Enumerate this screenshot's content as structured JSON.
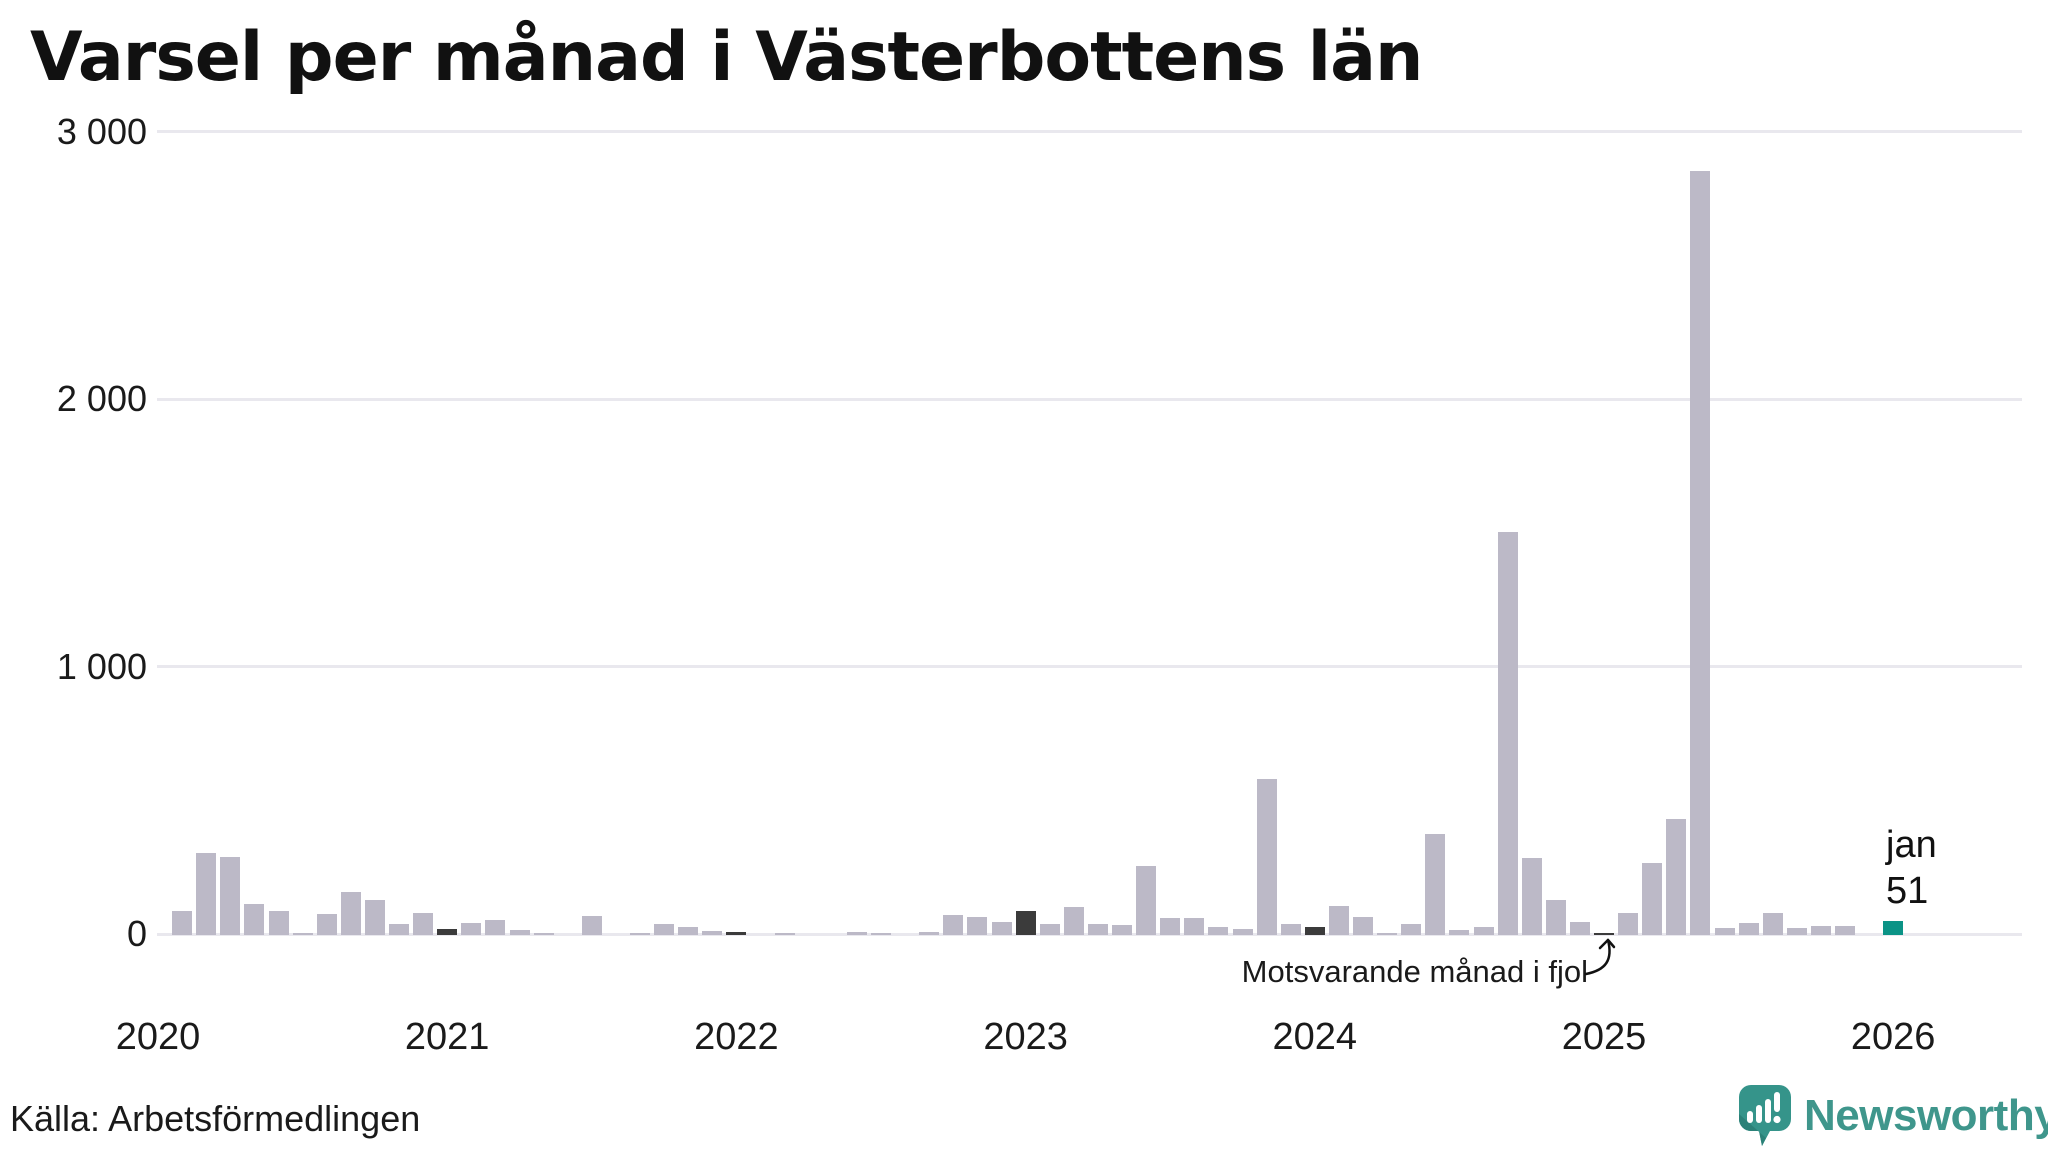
{
  "title": "Varsel per månad i Västerbottens län",
  "source": "Källa: Arbetsförmedlingen",
  "brand": {
    "name": "Newsworthy"
  },
  "annotation": {
    "text": "Motsvarande månad i fjol"
  },
  "current_point_label": {
    "month": "jan",
    "value": "51"
  },
  "y_axis": {
    "ticks": [
      {
        "value": 0,
        "label": "0"
      },
      {
        "value": 1000,
        "label": "1 000"
      },
      {
        "value": 2000,
        "label": "2 000"
      },
      {
        "value": 3000,
        "label": "3 000"
      }
    ]
  },
  "x_axis": {
    "years": [
      "2020",
      "2021",
      "2022",
      "2023",
      "2024",
      "2025",
      "2026"
    ]
  },
  "colors": {
    "bar": "#bcb9c7",
    "highlight": "#3b3b3b",
    "current": "#0b9386",
    "grid": "#e9e8ee",
    "text": "#1a1a1a",
    "brand_teal": "#3f968c",
    "brand_bubble": "#35948a"
  },
  "chart_data": {
    "type": "bar",
    "title": "Varsel per månad i Västerbottens län",
    "xlabel": "",
    "ylabel": "",
    "ylim": [
      0,
      3000
    ],
    "grid": "horizontal",
    "legend_position": "none",
    "highlighted_months": [
      "2021-01",
      "2022-01",
      "2023-01",
      "2024-01",
      "2025-01"
    ],
    "current_month": "2026-01",
    "points": [
      {
        "month": "2020-01",
        "value": 0
      },
      {
        "month": "2020-02",
        "value": 90
      },
      {
        "month": "2020-03",
        "value": 307
      },
      {
        "month": "2020-04",
        "value": 291
      },
      {
        "month": "2020-05",
        "value": 117
      },
      {
        "month": "2020-06",
        "value": 90
      },
      {
        "month": "2020-07",
        "value": 5
      },
      {
        "month": "2020-08",
        "value": 77
      },
      {
        "month": "2020-09",
        "value": 160
      },
      {
        "month": "2020-10",
        "value": 132
      },
      {
        "month": "2020-11",
        "value": 40
      },
      {
        "month": "2020-12",
        "value": 82
      },
      {
        "month": "2021-01",
        "value": 24
      },
      {
        "month": "2021-02",
        "value": 46
      },
      {
        "month": "2021-03",
        "value": 57
      },
      {
        "month": "2021-04",
        "value": 20
      },
      {
        "month": "2021-05",
        "value": 7
      },
      {
        "month": "2021-06",
        "value": 0
      },
      {
        "month": "2021-07",
        "value": 70
      },
      {
        "month": "2021-08",
        "value": 0
      },
      {
        "month": "2021-09",
        "value": 6
      },
      {
        "month": "2021-10",
        "value": 42
      },
      {
        "month": "2021-11",
        "value": 30
      },
      {
        "month": "2021-12",
        "value": 15
      },
      {
        "month": "2022-01",
        "value": 13
      },
      {
        "month": "2022-02",
        "value": 0
      },
      {
        "month": "2022-03",
        "value": 8
      },
      {
        "month": "2022-04",
        "value": 0
      },
      {
        "month": "2022-05",
        "value": 0
      },
      {
        "month": "2022-06",
        "value": 10
      },
      {
        "month": "2022-07",
        "value": 5
      },
      {
        "month": "2022-08",
        "value": 0
      },
      {
        "month": "2022-09",
        "value": 10
      },
      {
        "month": "2022-10",
        "value": 76
      },
      {
        "month": "2022-11",
        "value": 67
      },
      {
        "month": "2022-12",
        "value": 49
      },
      {
        "month": "2023-01",
        "value": 90
      },
      {
        "month": "2023-02",
        "value": 42
      },
      {
        "month": "2023-03",
        "value": 105
      },
      {
        "month": "2023-04",
        "value": 40
      },
      {
        "month": "2023-05",
        "value": 37
      },
      {
        "month": "2023-06",
        "value": 258
      },
      {
        "month": "2023-07",
        "value": 64
      },
      {
        "month": "2023-08",
        "value": 64
      },
      {
        "month": "2023-09",
        "value": 31
      },
      {
        "month": "2023-10",
        "value": 24
      },
      {
        "month": "2023-11",
        "value": 582
      },
      {
        "month": "2023-12",
        "value": 42
      },
      {
        "month": "2024-01",
        "value": 30
      },
      {
        "month": "2024-02",
        "value": 108
      },
      {
        "month": "2024-03",
        "value": 67
      },
      {
        "month": "2024-04",
        "value": 9
      },
      {
        "month": "2024-05",
        "value": 40
      },
      {
        "month": "2024-06",
        "value": 377
      },
      {
        "month": "2024-07",
        "value": 19
      },
      {
        "month": "2024-08",
        "value": 30
      },
      {
        "month": "2024-09",
        "value": 1508
      },
      {
        "month": "2024-10",
        "value": 287
      },
      {
        "month": "2024-11",
        "value": 131
      },
      {
        "month": "2024-12",
        "value": 49
      },
      {
        "month": "2025-01",
        "value": 5
      },
      {
        "month": "2025-02",
        "value": 82
      },
      {
        "month": "2025-03",
        "value": 269
      },
      {
        "month": "2025-04",
        "value": 432
      },
      {
        "month": "2025-05",
        "value": 2856
      },
      {
        "month": "2025-06",
        "value": 28
      },
      {
        "month": "2025-07",
        "value": 46
      },
      {
        "month": "2025-08",
        "value": 81
      },
      {
        "month": "2025-09",
        "value": 26
      },
      {
        "month": "2025-10",
        "value": 33
      },
      {
        "month": "2025-11",
        "value": 33
      },
      {
        "month": "2025-12",
        "value": 0
      },
      {
        "month": "2026-01",
        "value": 51
      }
    ]
  }
}
